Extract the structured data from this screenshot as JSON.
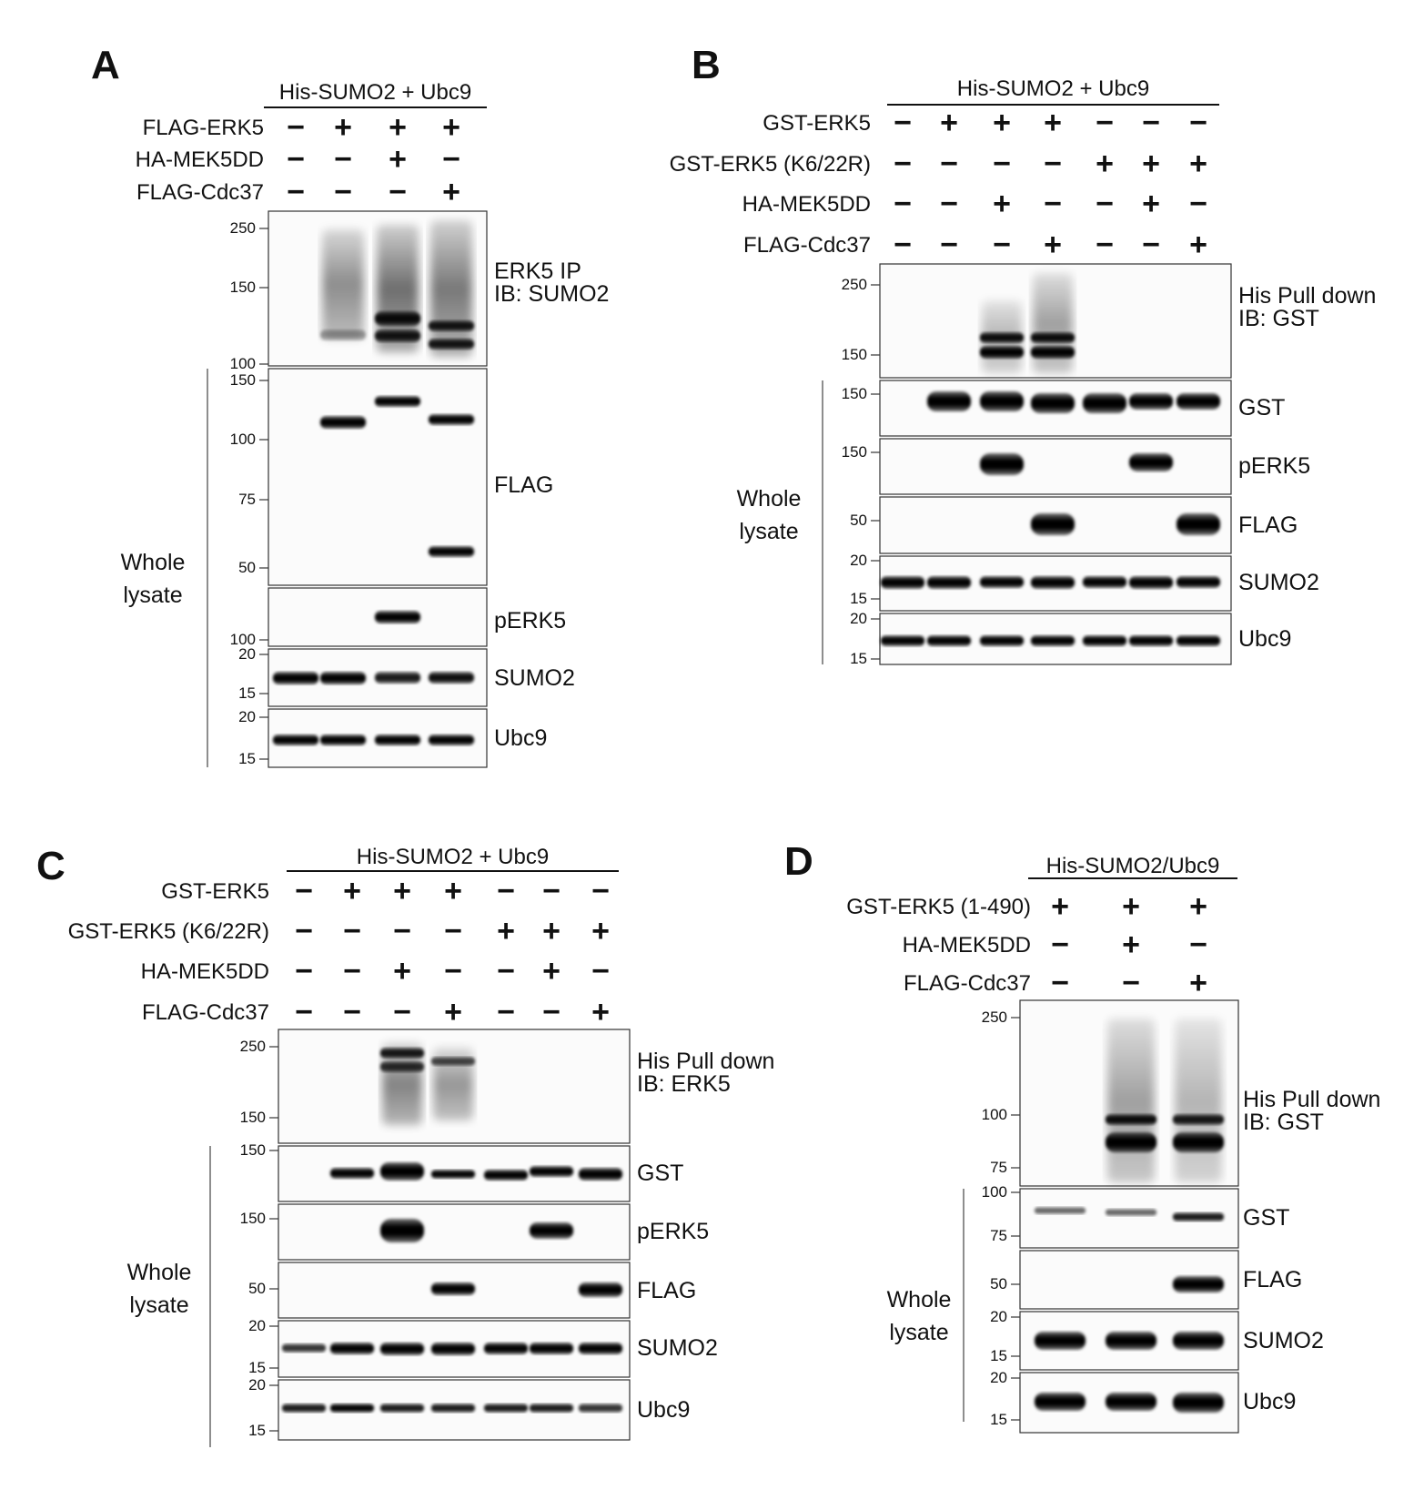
{
  "panels": [
    {
      "id": "A",
      "label": "A",
      "header": "His-SUMO2 + Ubc9",
      "rows": [
        {
          "label": "FLAG-ERK5",
          "signs": [
            "−",
            "+",
            "+",
            "+"
          ]
        },
        {
          "label": "HA-MEK5DD",
          "signs": [
            "−",
            "−",
            "+",
            "−"
          ]
        },
        {
          "label": "FLAG-Cdc37",
          "signs": [
            "−",
            "−",
            "−",
            "+"
          ]
        }
      ],
      "blots": [
        {
          "antibody": "ERK5 IP\nIB: SUMO2",
          "mw_markers": [
            "250",
            "150",
            "100"
          ]
        },
        {
          "antibody": "FLAG",
          "mw_markers": [
            "150",
            "100",
            "75",
            "50"
          ]
        },
        {
          "antibody": "pERK5",
          "mw_markers": [
            "100"
          ]
        },
        {
          "antibody": "SUMO2",
          "mw_markers": [
            "20",
            "15"
          ]
        },
        {
          "antibody": "Ubc9",
          "mw_markers": [
            "20",
            "15"
          ]
        }
      ],
      "lysate_label": "Whole\nlysate"
    },
    {
      "id": "B",
      "label": "B",
      "header": "His-SUMO2 + Ubc9",
      "rows": [
        {
          "label": "GST-ERK5",
          "signs": [
            "−",
            "+",
            "+",
            "+",
            "−",
            "−",
            "−"
          ]
        },
        {
          "label": "GST-ERK5 (K6/22R)",
          "signs": [
            "−",
            "−",
            "−",
            "−",
            "+",
            "+",
            "+"
          ]
        },
        {
          "label": "HA-MEK5DD",
          "signs": [
            "−",
            "−",
            "+",
            "−",
            "−",
            "+",
            "−"
          ]
        },
        {
          "label": "FLAG-Cdc37",
          "signs": [
            "−",
            "−",
            "−",
            "+",
            "−",
            "−",
            "+"
          ]
        }
      ],
      "blots": [
        {
          "antibody": "His Pull down\nIB: GST",
          "mw_markers": [
            "250",
            "150"
          ]
        },
        {
          "antibody": "GST",
          "mw_markers": [
            "150"
          ]
        },
        {
          "antibody": "pERK5",
          "mw_markers": [
            "150"
          ]
        },
        {
          "antibody": "FLAG",
          "mw_markers": [
            "50"
          ]
        },
        {
          "antibody": "SUMO2",
          "mw_markers": [
            "20",
            "15"
          ]
        },
        {
          "antibody": "Ubc9",
          "mw_markers": [
            "20",
            "15"
          ]
        }
      ],
      "lysate_label": "Whole\nlysate"
    },
    {
      "id": "C",
      "label": "C",
      "header": "His-SUMO2 + Ubc9",
      "rows": [
        {
          "label": "GST-ERK5",
          "signs": [
            "−",
            "+",
            "+",
            "+",
            "−",
            "−",
            "−"
          ]
        },
        {
          "label": "GST-ERK5 (K6/22R)",
          "signs": [
            "−",
            "−",
            "−",
            "−",
            "+",
            "+",
            "+"
          ]
        },
        {
          "label": "HA-MEK5DD",
          "signs": [
            "−",
            "−",
            "+",
            "−",
            "−",
            "+",
            "−"
          ]
        },
        {
          "label": "FLAG-Cdc37",
          "signs": [
            "−",
            "−",
            "−",
            "+",
            "−",
            "−",
            "+"
          ]
        }
      ],
      "blots": [
        {
          "antibody": "His Pull down\nIB: ERK5",
          "mw_markers": [
            "250",
            "150"
          ]
        },
        {
          "antibody": "GST",
          "mw_markers": [
            "150"
          ]
        },
        {
          "antibody": "pERK5",
          "mw_markers": [
            "150"
          ]
        },
        {
          "antibody": "FLAG",
          "mw_markers": [
            "50"
          ]
        },
        {
          "antibody": "SUMO2",
          "mw_markers": [
            "20",
            "15"
          ]
        },
        {
          "antibody": "Ubc9",
          "mw_markers": [
            "20",
            "15"
          ]
        }
      ],
      "lysate_label": "Whole\nlysate"
    },
    {
      "id": "D",
      "label": "D",
      "header": "His-SUMO2/Ubc9",
      "rows": [
        {
          "label": "GST-ERK5 (1-490)",
          "signs": [
            "+",
            "+",
            "+"
          ]
        },
        {
          "label": "HA-MEK5DD",
          "signs": [
            "−",
            "+",
            "−"
          ]
        },
        {
          "label": "FLAG-Cdc37",
          "signs": [
            "−",
            "−",
            "+"
          ]
        }
      ],
      "blots": [
        {
          "antibody": "His Pull down\nIB: GST",
          "mw_markers": [
            "250",
            "100",
            "75"
          ]
        },
        {
          "antibody": "GST",
          "mw_markers": [
            "100",
            "75"
          ]
        },
        {
          "antibody": "FLAG",
          "mw_markers": [
            "50"
          ]
        },
        {
          "antibody": "SUMO2",
          "mw_markers": [
            "20",
            "15"
          ]
        },
        {
          "antibody": "Ubc9",
          "mw_markers": [
            "20",
            "15"
          ]
        }
      ],
      "lysate_label": "Whole\nlysate"
    }
  ]
}
